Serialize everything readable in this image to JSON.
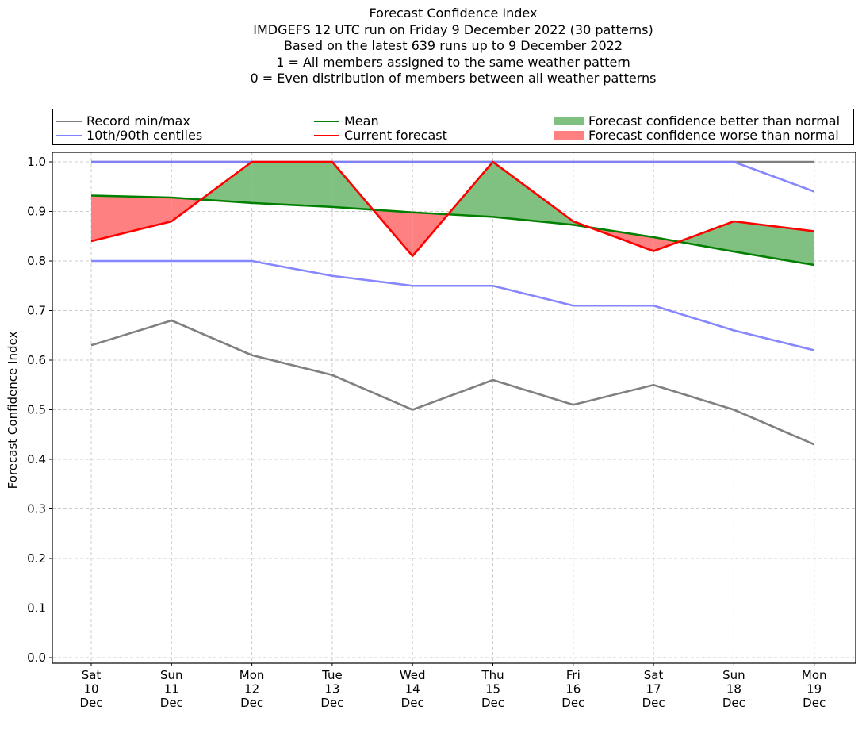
{
  "title_lines": [
    "Forecast Confidence Index",
    "IMDGEFS 12 UTC run on Friday 9 December 2022 (30 patterns)",
    "Based on the latest 639 runs up to 9 December 2022",
    "1 = All members assigned to the same weather pattern",
    "0 = Even distribution of members between all weather patterns"
  ],
  "legend": {
    "items": [
      {
        "label": "Record min/max",
        "kind": "line",
        "color": "#808080"
      },
      {
        "label": "10th/90th centiles",
        "kind": "line",
        "color": "#8080ff"
      },
      {
        "label": "Mean",
        "kind": "line",
        "color": "#008000"
      },
      {
        "label": "Current forecast",
        "kind": "line",
        "color": "#ff0000"
      },
      {
        "label": "Forecast confidence better than normal",
        "kind": "patch",
        "color": "#80c080"
      },
      {
        "label": "Forecast confidence worse than normal",
        "kind": "patch",
        "color": "#ff8080"
      }
    ],
    "placement": "top (above plot, 3 columns)"
  },
  "chart_data": {
    "type": "line",
    "title": "Forecast Confidence Index",
    "xlabel": "",
    "ylabel": "Forecast Confidence Index",
    "ylim": [
      0.0,
      1.0
    ],
    "yticks": [
      "0.0",
      "0.1",
      "0.2",
      "0.3",
      "0.4",
      "0.5",
      "0.6",
      "0.7",
      "0.8",
      "0.9",
      "1.0"
    ],
    "ytick_values": [
      0.0,
      0.1,
      0.2,
      0.3,
      0.4,
      0.5,
      0.6,
      0.7,
      0.8,
      0.9,
      1.0
    ],
    "grid": true,
    "categories": [
      [
        "Sat",
        "10",
        "Dec"
      ],
      [
        "Sun",
        "11",
        "Dec"
      ],
      [
        "Mon",
        "12",
        "Dec"
      ],
      [
        "Tue",
        "13",
        "Dec"
      ],
      [
        "Wed",
        "14",
        "Dec"
      ],
      [
        "Thu",
        "15",
        "Dec"
      ],
      [
        "Fri",
        "16",
        "Dec"
      ],
      [
        "Sat",
        "17",
        "Dec"
      ],
      [
        "Sun",
        "18",
        "Dec"
      ],
      [
        "Mon",
        "19",
        "Dec"
      ]
    ],
    "series": [
      {
        "name": "Record max",
        "legend": "Record min/max",
        "color": "#808080",
        "values": [
          1.0,
          1.0,
          1.0,
          1.0,
          1.0,
          1.0,
          1.0,
          1.0,
          1.0,
          1.0
        ]
      },
      {
        "name": "Record min",
        "legend": "Record min/max",
        "color": "#808080",
        "values": [
          0.63,
          0.68,
          0.61,
          0.57,
          0.5,
          0.56,
          0.51,
          0.55,
          0.5,
          0.43
        ]
      },
      {
        "name": "90th centile",
        "legend": "10th/90th centiles",
        "color": "#8080ff",
        "values": [
          1.0,
          1.0,
          1.0,
          1.0,
          1.0,
          1.0,
          1.0,
          1.0,
          1.0,
          0.94
        ]
      },
      {
        "name": "10th centile",
        "legend": "10th/90th centiles",
        "color": "#8080ff",
        "values": [
          0.8,
          0.8,
          0.8,
          0.77,
          0.75,
          0.75,
          0.71,
          0.71,
          0.66,
          0.62
        ]
      },
      {
        "name": "Mean",
        "legend": "Mean",
        "color": "#008000",
        "values": [
          0.932,
          0.928,
          0.917,
          0.909,
          0.898,
          0.889,
          0.873,
          0.848,
          0.819,
          0.792
        ]
      },
      {
        "name": "Current forecast",
        "legend": "Current forecast",
        "color": "#ff0000",
        "values": [
          0.84,
          0.88,
          1.0,
          1.0,
          0.81,
          1.0,
          0.88,
          0.82,
          0.88,
          0.86
        ]
      }
    ],
    "fills": {
      "between": [
        "Current forecast",
        "Mean"
      ],
      "better_color": "#80c080",
      "worse_color": "#ff8080"
    }
  }
}
